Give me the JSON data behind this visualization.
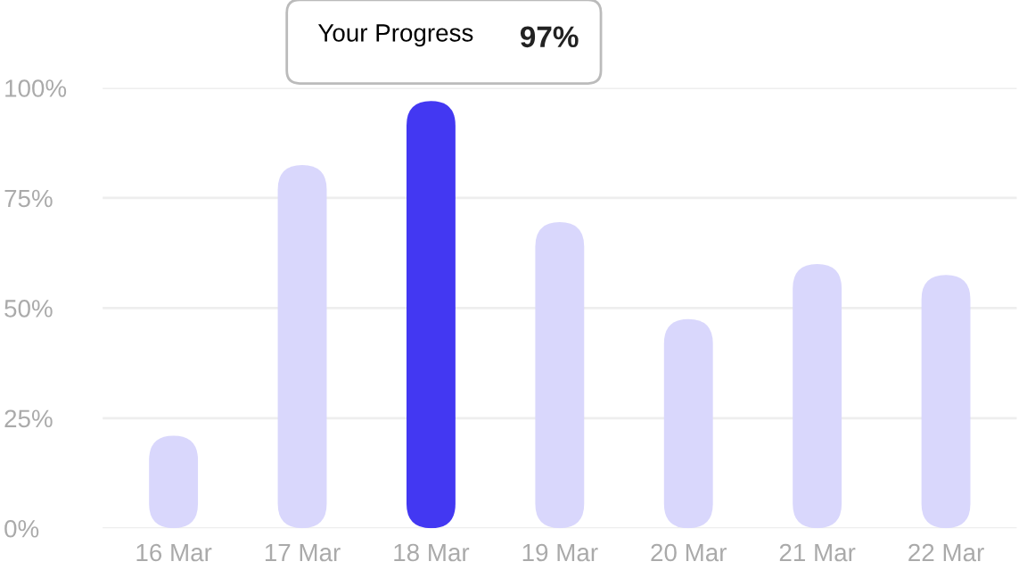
{
  "chart_data": {
    "type": "bar",
    "categories": [
      "16 Mar",
      "17 Mar",
      "18 Mar",
      "19 Mar",
      "20 Mar",
      "21 Mar",
      "22 Mar"
    ],
    "values": [
      21,
      82.5,
      97,
      69.5,
      47.5,
      60,
      57.5
    ],
    "colors": [
      "#d9d7fc",
      "#d9d7fc",
      "#4338f2",
      "#d9d7fc",
      "#d9d7fc",
      "#d9d7fc",
      "#d9d7fc"
    ],
    "annotations": [
      {
        "text": "Your Progress",
        "x": "18 Mar",
        "y": 97
      },
      "97%"
    ],
    "ylim": [
      0,
      100
    ],
    "yticks": [
      {
        "value": 0,
        "label": "0%"
      },
      {
        "value": 25,
        "label": "25%"
      },
      {
        "value": 50,
        "label": "50%"
      },
      {
        "value": 75,
        "label": "75%"
      },
      {
        "value": 100,
        "label": "100%"
      }
    ],
    "grid": "y",
    "legend": false
  }
}
